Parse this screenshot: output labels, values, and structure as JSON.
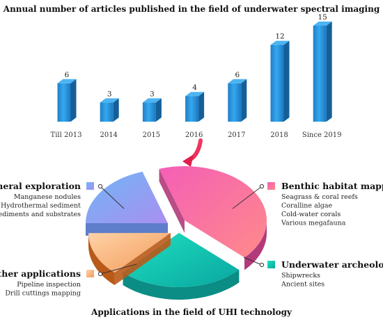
{
  "chart_data": [
    {
      "type": "bar",
      "title": "Annual number of articles published in the field of underwater spectral imaging",
      "categories": [
        "Till 2013",
        "2014",
        "2015",
        "2016",
        "2017",
        "2018",
        "Since 2019"
      ],
      "values": [
        6,
        3,
        3,
        4,
        6,
        12,
        15
      ],
      "xlabel": "",
      "ylabel": "",
      "ylim": [
        0,
        15
      ],
      "grid": false,
      "color": "#1f8fd6"
    },
    {
      "type": "pie",
      "title": "Applications in the field of UHI technology",
      "slices": [
        {
          "name": "Mineral exploration",
          "color": "#7fa8f0",
          "share": 0.2,
          "items": [
            "Manganese nodules",
            "Hydrothermal sediment",
            "Sediments and substrates"
          ]
        },
        {
          "name": "Benthic habitat mapping",
          "color": "#f06cb0",
          "share": 0.42,
          "items": [
            "Seagrass & coral reefs",
            "Coralline algae",
            "Cold-water corals",
            "Various megafauna"
          ]
        },
        {
          "name": "Underwater archeology",
          "color": "#1fd6b8",
          "share": 0.25,
          "items": [
            "Shipwrecks",
            "Ancient sites"
          ]
        },
        {
          "name": "Other applications",
          "color": "#f7b27a",
          "share": 0.13,
          "items": [
            "Pipeline inspection",
            "Drill cuttings mapping"
          ]
        }
      ]
    }
  ]
}
